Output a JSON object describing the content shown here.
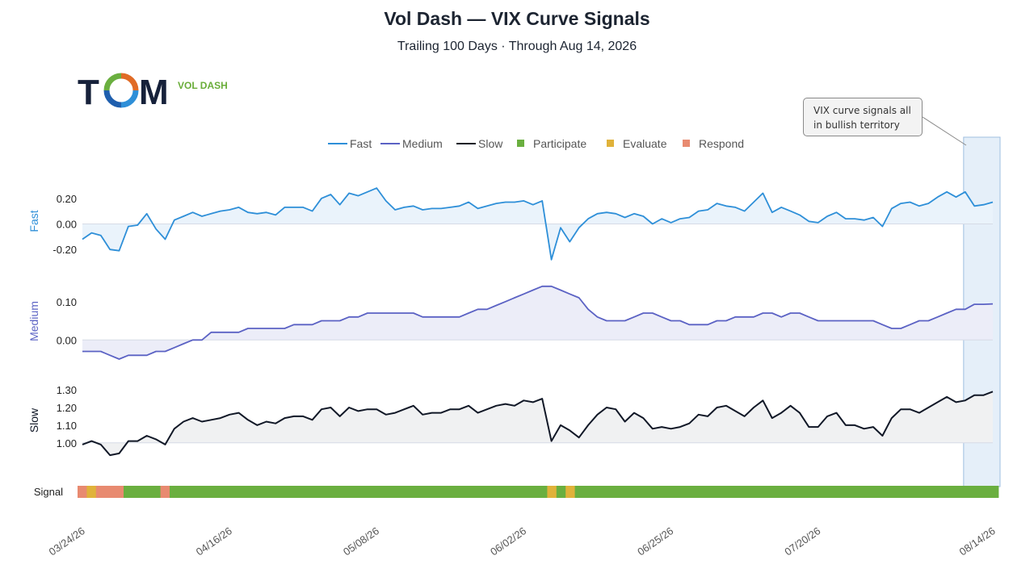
{
  "title": "Vol Dash — VIX Curve Signals",
  "subtitle": "Trailing 100 Days · Through Aug 14, 2026",
  "brand": {
    "logo_text": "TCM",
    "tagline": "VOL DASH"
  },
  "annotation": "VIX curve signals all in bullish territory",
  "colors": {
    "fast": "#2e8fd8",
    "medium": "#5b62c4",
    "slow": "#111827",
    "participate": "#6aaf3f",
    "evaluate": "#e0b23a",
    "respond": "#e88a70",
    "highlight": "#dce9f7"
  },
  "chart_data": {
    "type": "line",
    "n_points": 100,
    "legend": [
      {
        "label": "Fast",
        "kind": "line",
        "color": "#2e8fd8"
      },
      {
        "label": "Medium",
        "kind": "line",
        "color": "#5b62c4"
      },
      {
        "label": "Slow",
        "kind": "line",
        "color": "#111827"
      },
      {
        "label": "Participate",
        "kind": "box",
        "color": "#6aaf3f"
      },
      {
        "label": "Evaluate",
        "kind": "box",
        "color": "#e0b23a"
      },
      {
        "label": "Respond",
        "kind": "box",
        "color": "#e88a70"
      }
    ],
    "x_ticks": [
      {
        "index": 0,
        "label": "03/24/26"
      },
      {
        "index": 16,
        "label": "04/16/26"
      },
      {
        "index": 32,
        "label": "05/08/26"
      },
      {
        "index": 48,
        "label": "06/02/26"
      },
      {
        "index": 64,
        "label": "06/25/26"
      },
      {
        "index": 80,
        "label": "07/20/26"
      },
      {
        "index": 99,
        "label": "08/14/26"
      }
    ],
    "panels": [
      {
        "name": "Fast",
        "ylabel": "Fast",
        "ylim": [
          -0.3,
          0.35
        ],
        "ticks": [
          {
            "v": 0.2,
            "t": "0.20"
          },
          {
            "v": 0.0,
            "t": "0.00"
          },
          {
            "v": -0.2,
            "t": "-0.20"
          }
        ],
        "values": [
          -0.12,
          -0.07,
          -0.09,
          -0.2,
          -0.21,
          -0.02,
          -0.01,
          0.08,
          -0.04,
          -0.12,
          0.03,
          0.06,
          0.09,
          0.06,
          0.08,
          0.1,
          0.11,
          0.13,
          0.09,
          0.08,
          0.09,
          0.07,
          0.13,
          0.13,
          0.13,
          0.1,
          0.2,
          0.23,
          0.15,
          0.24,
          0.22,
          0.25,
          0.28,
          0.18,
          0.11,
          0.13,
          0.14,
          0.11,
          0.12,
          0.12,
          0.13,
          0.14,
          0.17,
          0.12,
          0.14,
          0.16,
          0.17,
          0.17,
          0.18,
          0.15,
          0.18,
          -0.28,
          -0.03,
          -0.14,
          -0.03,
          0.04,
          0.08,
          0.09,
          0.08,
          0.05,
          0.08,
          0.06,
          0.0,
          0.04,
          0.01,
          0.04,
          0.05,
          0.1,
          0.11,
          0.16,
          0.14,
          0.13,
          0.1,
          0.17,
          0.24,
          0.09,
          0.13,
          0.1,
          0.07,
          0.02,
          0.01,
          0.06,
          0.09,
          0.04,
          0.04,
          0.03,
          0.05,
          -0.02,
          0.12,
          0.16,
          0.17,
          0.14,
          0.16,
          0.21,
          0.25,
          0.21,
          0.25,
          0.14,
          0.15,
          0.17
        ]
      },
      {
        "name": "Medium",
        "ylabel": "Medium",
        "ylim": [
          -0.05,
          0.15
        ],
        "ticks": [
          {
            "v": 0.1,
            "t": "0.10"
          },
          {
            "v": 0.0,
            "t": "0.00"
          }
        ],
        "values": [
          -0.03,
          -0.03,
          -0.03,
          -0.04,
          -0.05,
          -0.04,
          -0.04,
          -0.04,
          -0.03,
          -0.03,
          -0.02,
          -0.01,
          0.0,
          0.0,
          0.02,
          0.02,
          0.02,
          0.02,
          0.03,
          0.03,
          0.03,
          0.03,
          0.03,
          0.04,
          0.04,
          0.04,
          0.05,
          0.05,
          0.05,
          0.06,
          0.06,
          0.07,
          0.07,
          0.07,
          0.07,
          0.07,
          0.07,
          0.06,
          0.06,
          0.06,
          0.06,
          0.06,
          0.07,
          0.08,
          0.08,
          0.09,
          0.1,
          0.11,
          0.12,
          0.13,
          0.14,
          0.14,
          0.13,
          0.12,
          0.11,
          0.08,
          0.06,
          0.05,
          0.05,
          0.05,
          0.06,
          0.07,
          0.07,
          0.06,
          0.05,
          0.05,
          0.04,
          0.04,
          0.04,
          0.05,
          0.05,
          0.06,
          0.06,
          0.06,
          0.07,
          0.07,
          0.06,
          0.07,
          0.07,
          0.06,
          0.05,
          0.05,
          0.05,
          0.05,
          0.05,
          0.05,
          0.05,
          0.04,
          0.03,
          0.03,
          0.04,
          0.05,
          0.05,
          0.06,
          0.07,
          0.08,
          0.08,
          0.093,
          0.093,
          0.094
        ]
      },
      {
        "name": "Slow",
        "ylabel": "Slow",
        "ylim": [
          0.88,
          1.36
        ],
        "ticks": [
          {
            "v": 1.3,
            "t": "1.30"
          },
          {
            "v": 1.2,
            "t": "1.20"
          },
          {
            "v": 1.1,
            "t": "1.10"
          },
          {
            "v": 1.0,
            "t": "1.00"
          }
        ],
        "values": [
          0.99,
          1.01,
          0.99,
          0.93,
          0.94,
          1.01,
          1.01,
          1.04,
          1.02,
          0.99,
          1.08,
          1.12,
          1.14,
          1.12,
          1.13,
          1.14,
          1.16,
          1.17,
          1.13,
          1.1,
          1.12,
          1.11,
          1.14,
          1.15,
          1.15,
          1.13,
          1.19,
          1.2,
          1.15,
          1.2,
          1.18,
          1.19,
          1.19,
          1.16,
          1.17,
          1.19,
          1.21,
          1.16,
          1.17,
          1.17,
          1.19,
          1.19,
          1.21,
          1.17,
          1.19,
          1.21,
          1.22,
          1.21,
          1.24,
          1.23,
          1.25,
          1.01,
          1.1,
          1.07,
          1.03,
          1.1,
          1.16,
          1.2,
          1.19,
          1.12,
          1.17,
          1.14,
          1.08,
          1.09,
          1.08,
          1.09,
          1.11,
          1.16,
          1.15,
          1.2,
          1.21,
          1.18,
          1.15,
          1.2,
          1.24,
          1.14,
          1.17,
          1.21,
          1.17,
          1.09,
          1.09,
          1.15,
          1.17,
          1.1,
          1.1,
          1.08,
          1.09,
          1.04,
          1.14,
          1.19,
          1.19,
          1.17,
          1.2,
          1.23,
          1.26,
          1.23,
          1.24,
          1.27,
          1.27,
          1.29
        ]
      }
    ],
    "signal": {
      "ylabel": "Signal",
      "segments": [
        {
          "start": 0,
          "end": 1,
          "state": "respond"
        },
        {
          "start": 1,
          "end": 2,
          "state": "evaluate"
        },
        {
          "start": 2,
          "end": 5,
          "state": "respond"
        },
        {
          "start": 5,
          "end": 9,
          "state": "participate"
        },
        {
          "start": 9,
          "end": 10,
          "state": "respond"
        },
        {
          "start": 10,
          "end": 51,
          "state": "participate"
        },
        {
          "start": 51,
          "end": 52,
          "state": "evaluate"
        },
        {
          "start": 52,
          "end": 53,
          "state": "participate"
        },
        {
          "start": 53,
          "end": 54,
          "state": "evaluate"
        },
        {
          "start": 54,
          "end": 100,
          "state": "participate"
        }
      ]
    },
    "highlight": {
      "start_index": 96,
      "end_index": 99,
      "label_ref": "annotation"
    },
    "grid": false
  }
}
